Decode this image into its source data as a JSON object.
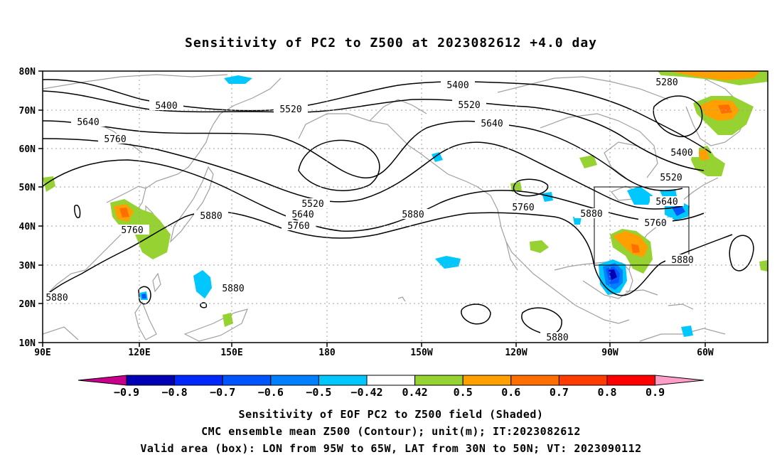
{
  "title": "Sensitivity of PC2 to Z500 at 2023082612 +4.0 day",
  "lat_labels": [
    "80N",
    "70N",
    "60N",
    "50N",
    "40N",
    "30N",
    "20N",
    "10N"
  ],
  "lon_labels": [
    "90E",
    "120E",
    "150E",
    "180",
    "150W",
    "120W",
    "90W",
    "60W"
  ],
  "contour_labels": {
    "c5400a": "5400",
    "c5400b": "5400",
    "c5400c": "5400",
    "c5520a": "5520",
    "c5520b": "5520",
    "c5520c": "5520",
    "c5520d": "5520",
    "c5640a": "5640",
    "c5640b": "5640",
    "c5640c": "5640",
    "c5640d": "5640",
    "c5760a": "5760",
    "c5760b": "5760",
    "c5760c": "5760",
    "c5760d": "5760",
    "c5760e": "5760",
    "c5880a": "5880",
    "c5880b": "5880",
    "c5880c": "5880",
    "c5880d": "5880",
    "c5880e": "5880",
    "c5880f": "5880",
    "c5280": "5280"
  },
  "colorbar": {
    "labels": [
      "-0.9",
      "-0.8",
      "-0.7",
      "-0.6",
      "-0.5",
      "-0.42",
      "0.42",
      "0.5",
      "0.6",
      "0.7",
      "0.8",
      "0.9"
    ],
    "colors": [
      "#0000b4",
      "#0028ff",
      "#0055ff",
      "#0080ff",
      "#00c8ff",
      "#ffffff",
      "#96d232",
      "#ffa000",
      "#ff6e00",
      "#ff3c00",
      "#ff0000"
    ],
    "left_arrow_color": "#c8008c",
    "right_arrow_color": "#ff9ec8"
  },
  "valid_box": {
    "lon_from": "95W",
    "lon_to": "65W",
    "lat_from": "30N",
    "lat_to": "50N"
  },
  "captions": {
    "line1": "Sensitivity of EOF PC2 to Z500 field (Shaded)",
    "line2": "CMC ensemble mean Z500 (Contour); unit(m); IT:2023082612",
    "line3": "Valid area (box): LON from 95W to 65W, LAT from 30N to 50N; VT: 2023090112"
  },
  "colors": {
    "coast": "#a0a0a0",
    "grid": "#a0a0a0",
    "contour": "#000000"
  }
}
